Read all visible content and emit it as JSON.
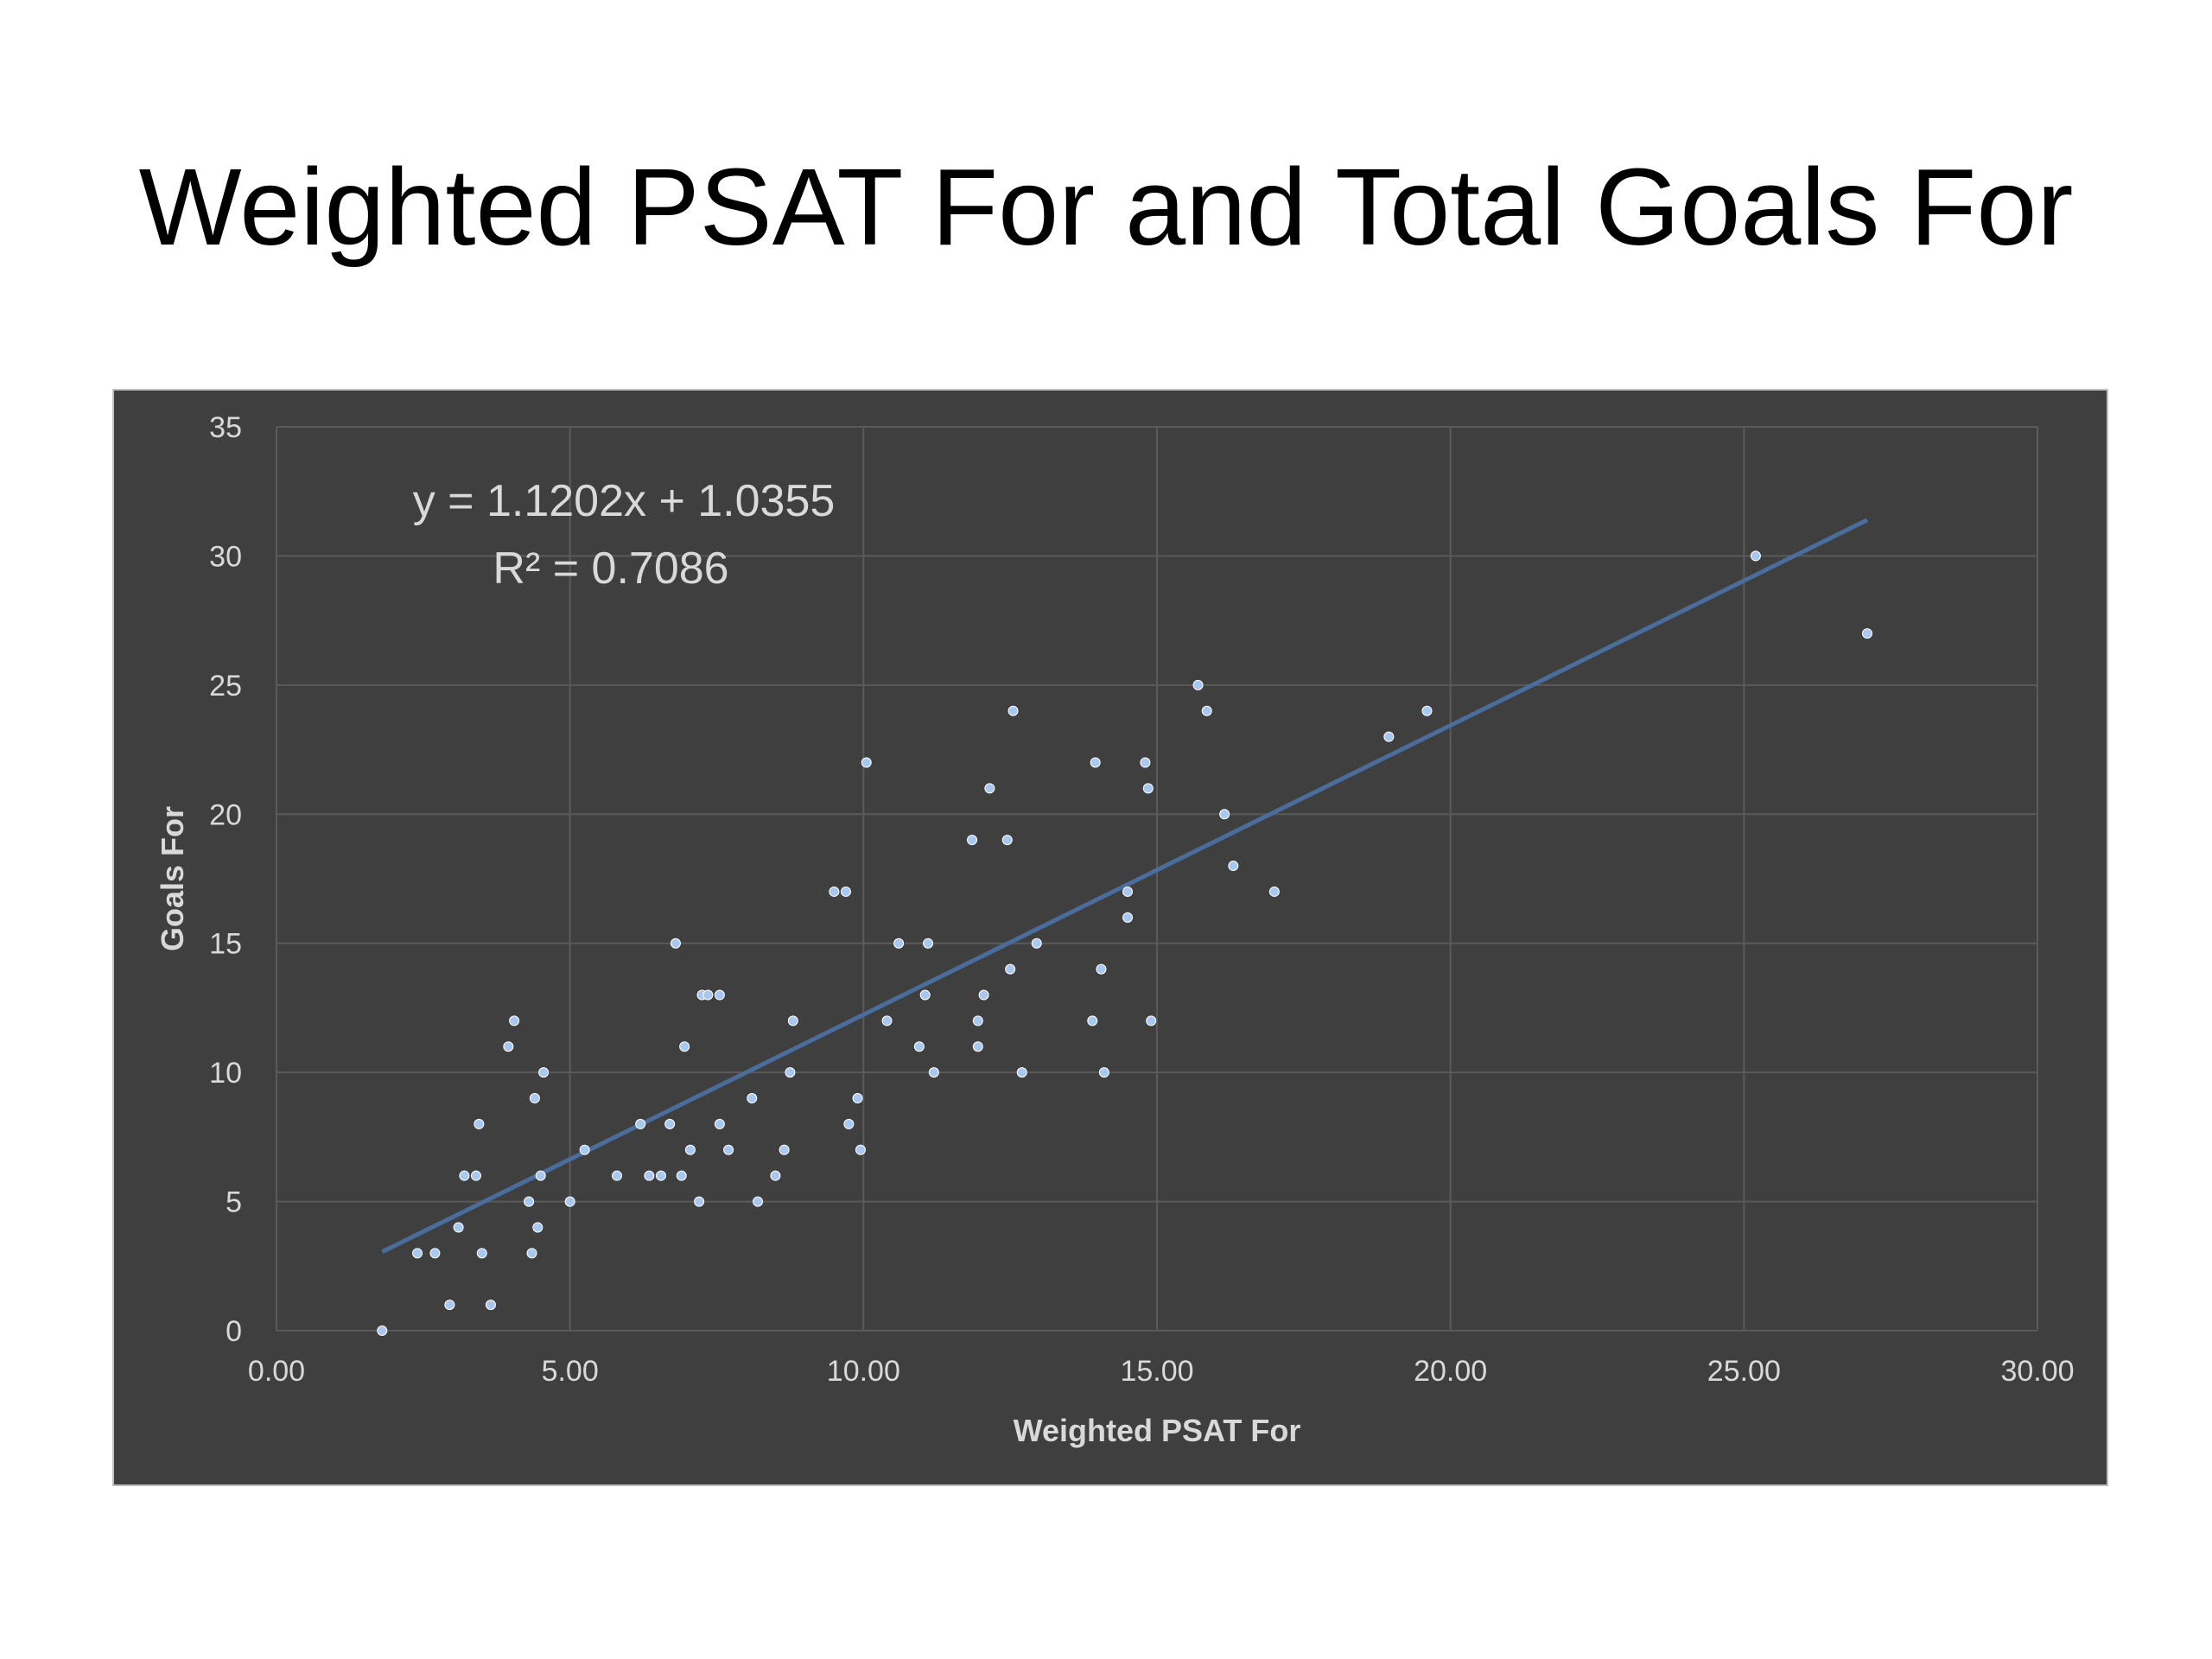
{
  "slide": {
    "title": "Weighted PSAT For and Total Goals For"
  },
  "chart_data": {
    "type": "scatter",
    "title": "",
    "xlabel": "Weighted PSAT For",
    "ylabel": "Goals For",
    "xlim": [
      0,
      30
    ],
    "ylim": [
      0,
      35
    ],
    "x_ticks": [
      "0.00",
      "5.00",
      "10.00",
      "15.00",
      "20.00",
      "25.00",
      "30.00"
    ],
    "y_ticks": [
      "0",
      "5",
      "10",
      "15",
      "20",
      "25",
      "30",
      "35"
    ],
    "grid": true,
    "legend": "none",
    "colors": {
      "background": "#3f3f3f",
      "point": "#a9c8f0",
      "trendline": "#4a6d9c",
      "grid": "#5a5a5a",
      "text": "#d9d9d9"
    },
    "trendline": {
      "type": "linear",
      "slope": 1.1202,
      "intercept": 1.0355,
      "x_range": [
        1.8,
        27.1
      ],
      "equation": "y = 1.1202x + 1.0355",
      "r_squared": "R² = 0.7086"
    },
    "series": [
      {
        "points": [
          [
            1.8,
            0
          ],
          [
            2.4,
            3
          ],
          [
            2.7,
            3
          ],
          [
            2.95,
            1
          ],
          [
            3.1,
            4
          ],
          [
            3.2,
            6
          ],
          [
            3.4,
            6
          ],
          [
            3.45,
            8
          ],
          [
            3.5,
            3
          ],
          [
            3.65,
            1
          ],
          [
            3.95,
            11
          ],
          [
            4.05,
            12
          ],
          [
            4.3,
            5
          ],
          [
            4.35,
            3
          ],
          [
            4.4,
            9
          ],
          [
            4.45,
            4
          ],
          [
            4.5,
            6
          ],
          [
            4.55,
            10
          ],
          [
            5.0,
            5
          ],
          [
            5.25,
            7
          ],
          [
            5.8,
            6
          ],
          [
            6.2,
            8
          ],
          [
            6.35,
            6
          ],
          [
            6.55,
            6
          ],
          [
            6.7,
            8
          ],
          [
            6.8,
            15
          ],
          [
            6.9,
            6
          ],
          [
            6.95,
            11
          ],
          [
            7.05,
            7
          ],
          [
            7.2,
            5
          ],
          [
            7.25,
            13
          ],
          [
            7.35,
            13
          ],
          [
            7.55,
            8
          ],
          [
            7.55,
            13
          ],
          [
            7.7,
            7
          ],
          [
            8.1,
            9
          ],
          [
            8.2,
            5
          ],
          [
            8.5,
            6
          ],
          [
            8.65,
            7
          ],
          [
            8.75,
            10
          ],
          [
            8.8,
            12
          ],
          [
            9.5,
            17
          ],
          [
            9.7,
            17
          ],
          [
            9.75,
            8
          ],
          [
            9.9,
            9
          ],
          [
            9.95,
            7
          ],
          [
            10.05,
            22
          ],
          [
            10.4,
            12
          ],
          [
            10.6,
            15
          ],
          [
            10.95,
            11
          ],
          [
            11.05,
            13
          ],
          [
            11.1,
            15
          ],
          [
            11.2,
            10
          ],
          [
            11.85,
            19
          ],
          [
            11.95,
            12
          ],
          [
            11.95,
            11
          ],
          [
            12.05,
            13
          ],
          [
            12.15,
            21
          ],
          [
            12.45,
            19
          ],
          [
            12.5,
            14
          ],
          [
            12.55,
            24
          ],
          [
            12.7,
            10
          ],
          [
            12.95,
            15
          ],
          [
            13.9,
            12
          ],
          [
            13.95,
            22
          ],
          [
            14.05,
            14
          ],
          [
            14.1,
            10
          ],
          [
            14.5,
            17
          ],
          [
            14.5,
            16
          ],
          [
            14.8,
            22
          ],
          [
            14.85,
            21
          ],
          [
            14.9,
            12
          ],
          [
            15.7,
            25
          ],
          [
            15.85,
            24
          ],
          [
            16.15,
            20
          ],
          [
            16.3,
            18
          ],
          [
            17.0,
            17
          ],
          [
            18.95,
            23
          ],
          [
            19.6,
            24
          ],
          [
            25.2,
            30
          ],
          [
            27.1,
            27
          ]
        ]
      }
    ]
  }
}
